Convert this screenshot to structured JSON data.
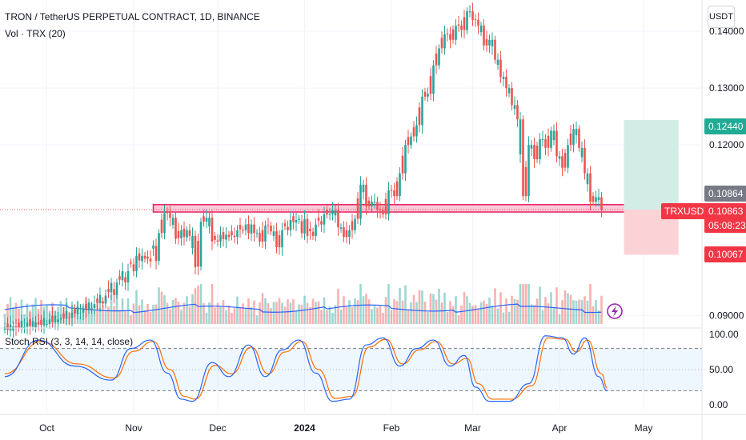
{
  "header": {
    "title": "TRON / TetherUS PERPETUAL CONTRACT, 1D, BINANCE",
    "volume_label": "Vol · TRX (20)",
    "currency_button": "USDT"
  },
  "rsi_label": "Stoch RSI (3, 3, 14, 14, close)",
  "price_tags": {
    "take_profit": "0.12440",
    "last_close": "0.10864",
    "symbol": "TRXUSDT.P",
    "current": "0.10863",
    "countdown": "05:08:23",
    "stop": "0.10067"
  },
  "colors": {
    "up": "#26a69a",
    "down": "#ef5350",
    "vol_ma": "#2962ff",
    "rsi_k": "#2962ff",
    "rsi_d": "#ff6d00",
    "zone_fill": "#f8bbd0",
    "zone_border": "#e91e63",
    "target_fill": "#d1ede6",
    "stop_fill": "#fbd3d7",
    "tag_green": "#22ab94",
    "tag_gray": "#787b86",
    "tag_red": "#f23645"
  },
  "icons": {
    "alert": "lightning-icon"
  },
  "chart_data": {
    "type": "candlestick",
    "price_axis": {
      "ticks": [
        "0.14000",
        "0.13000",
        "0.12000",
        "0.09000"
      ],
      "tick_values": [
        0.14,
        0.13,
        0.12,
        0.09
      ],
      "ylim": [
        0.0885,
        0.1455
      ]
    },
    "x_ticks": [
      "Oct",
      "Nov",
      "Dec",
      "2024",
      "Feb",
      "Mar",
      "Apr",
      "May"
    ],
    "x_tick_days": [
      15,
      46,
      76,
      107,
      138,
      167,
      198,
      228
    ],
    "support_zone": [
      0.1082,
      0.1095
    ],
    "target": 0.1244,
    "stop": 0.10067,
    "candles": [
      {
        "d": 0,
        "o": 0.0875,
        "c": 0.088
      },
      {
        "d": 4,
        "o": 0.0881,
        "c": 0.0879
      },
      {
        "d": 8,
        "o": 0.088,
        "c": 0.0888
      },
      {
        "d": 12,
        "o": 0.0888,
        "c": 0.0884
      },
      {
        "d": 16,
        "o": 0.0885,
        "c": 0.0893
      },
      {
        "d": 20,
        "o": 0.0893,
        "c": 0.0895
      },
      {
        "d": 24,
        "o": 0.0896,
        "c": 0.0905
      },
      {
        "d": 28,
        "o": 0.0905,
        "c": 0.0912
      },
      {
        "d": 32,
        "o": 0.0913,
        "c": 0.092
      },
      {
        "d": 36,
        "o": 0.0921,
        "c": 0.0935
      },
      {
        "d": 40,
        "o": 0.0936,
        "c": 0.0958
      },
      {
        "d": 44,
        "o": 0.0958,
        "c": 0.0978
      },
      {
        "d": 47,
        "o": 0.0978,
        "c": 0.1005
      },
      {
        "d": 50,
        "o": 0.1005,
        "c": 0.1
      },
      {
        "d": 52,
        "o": 0.1,
        "c": 0.0995
      },
      {
        "d": 55,
        "o": 0.0996,
        "c": 0.1045
      },
      {
        "d": 57,
        "o": 0.1045,
        "c": 0.108
      },
      {
        "d": 59,
        "o": 0.108,
        "c": 0.1072
      },
      {
        "d": 61,
        "o": 0.1072,
        "c": 0.1035
      },
      {
        "d": 63,
        "o": 0.1036,
        "c": 0.105
      },
      {
        "d": 66,
        "o": 0.105,
        "c": 0.104
      },
      {
        "d": 68,
        "o": 0.104,
        "c": 0.0985
      },
      {
        "d": 70,
        "o": 0.0986,
        "c": 0.1065
      },
      {
        "d": 72,
        "o": 0.1065,
        "c": 0.1072
      },
      {
        "d": 74,
        "o": 0.1072,
        "c": 0.103
      },
      {
        "d": 77,
        "o": 0.103,
        "c": 0.1042
      },
      {
        "d": 80,
        "o": 0.1042,
        "c": 0.1038
      },
      {
        "d": 83,
        "o": 0.1038,
        "c": 0.105
      },
      {
        "d": 86,
        "o": 0.105,
        "c": 0.106
      },
      {
        "d": 89,
        "o": 0.106,
        "c": 0.1045
      },
      {
        "d": 91,
        "o": 0.1045,
        "c": 0.103
      },
      {
        "d": 93,
        "o": 0.103,
        "c": 0.1058
      },
      {
        "d": 95,
        "o": 0.1058,
        "c": 0.1048
      },
      {
        "d": 97,
        "o": 0.1048,
        "c": 0.102
      },
      {
        "d": 99,
        "o": 0.102,
        "c": 0.105
      },
      {
        "d": 102,
        "o": 0.105,
        "c": 0.1068
      },
      {
        "d": 105,
        "o": 0.1068,
        "c": 0.107
      },
      {
        "d": 108,
        "o": 0.107,
        "c": 0.104
      },
      {
        "d": 111,
        "o": 0.104,
        "c": 0.106
      },
      {
        "d": 114,
        "o": 0.106,
        "c": 0.1078
      },
      {
        "d": 117,
        "o": 0.1078,
        "c": 0.1085
      },
      {
        "d": 119,
        "o": 0.1085,
        "c": 0.1055
      },
      {
        "d": 121,
        "o": 0.1055,
        "c": 0.1038
      },
      {
        "d": 123,
        "o": 0.1038,
        "c": 0.105
      },
      {
        "d": 125,
        "o": 0.105,
        "c": 0.107
      },
      {
        "d": 127,
        "o": 0.107,
        "c": 0.113
      },
      {
        "d": 129,
        "o": 0.113,
        "c": 0.1092
      },
      {
        "d": 131,
        "o": 0.1092,
        "c": 0.11
      },
      {
        "d": 133,
        "o": 0.11,
        "c": 0.1085
      },
      {
        "d": 135,
        "o": 0.1085,
        "c": 0.1078
      },
      {
        "d": 137,
        "o": 0.1078,
        "c": 0.112
      },
      {
        "d": 139,
        "o": 0.112,
        "c": 0.111
      },
      {
        "d": 141,
        "o": 0.111,
        "c": 0.115
      },
      {
        "d": 143,
        "o": 0.115,
        "c": 0.12
      },
      {
        "d": 145,
        "o": 0.12,
        "c": 0.1215
      },
      {
        "d": 147,
        "o": 0.1215,
        "c": 0.1235
      },
      {
        "d": 149,
        "o": 0.1235,
        "c": 0.1285
      },
      {
        "d": 151,
        "o": 0.1285,
        "c": 0.129
      },
      {
        "d": 153,
        "o": 0.129,
        "c": 0.134
      },
      {
        "d": 155,
        "o": 0.134,
        "c": 0.137
      },
      {
        "d": 157,
        "o": 0.137,
        "c": 0.1395
      },
      {
        "d": 159,
        "o": 0.1395,
        "c": 0.1385
      },
      {
        "d": 161,
        "o": 0.1385,
        "c": 0.141
      },
      {
        "d": 163,
        "o": 0.141,
        "c": 0.1402
      },
      {
        "d": 165,
        "o": 0.1402,
        "c": 0.1435
      },
      {
        "d": 167,
        "o": 0.1435,
        "c": 0.142
      },
      {
        "d": 169,
        "o": 0.142,
        "c": 0.141
      },
      {
        "d": 171,
        "o": 0.141,
        "c": 0.1375
      },
      {
        "d": 173,
        "o": 0.1375,
        "c": 0.1385
      },
      {
        "d": 175,
        "o": 0.1385,
        "c": 0.135
      },
      {
        "d": 177,
        "o": 0.135,
        "c": 0.132
      },
      {
        "d": 179,
        "o": 0.132,
        "c": 0.13
      },
      {
        "d": 181,
        "o": 0.13,
        "c": 0.127
      },
      {
        "d": 183,
        "o": 0.127,
        "c": 0.1245
      },
      {
        "d": 185,
        "o": 0.1245,
        "c": 0.111
      },
      {
        "d": 187,
        "o": 0.111,
        "c": 0.12
      },
      {
        "d": 189,
        "o": 0.12,
        "c": 0.1175
      },
      {
        "d": 191,
        "o": 0.1175,
        "c": 0.121
      },
      {
        "d": 193,
        "o": 0.121,
        "c": 0.1195
      },
      {
        "d": 195,
        "o": 0.1195,
        "c": 0.1225
      },
      {
        "d": 197,
        "o": 0.1225,
        "c": 0.118
      },
      {
        "d": 199,
        "o": 0.118,
        "c": 0.116
      },
      {
        "d": 201,
        "o": 0.116,
        "c": 0.12
      },
      {
        "d": 203,
        "o": 0.12,
        "c": 0.1228
      },
      {
        "d": 205,
        "o": 0.1228,
        "c": 0.1195
      },
      {
        "d": 207,
        "o": 0.1195,
        "c": 0.115
      },
      {
        "d": 209,
        "o": 0.115,
        "c": 0.11
      },
      {
        "d": 211,
        "o": 0.11,
        "c": 0.1108
      },
      {
        "d": 213,
        "o": 0.1108,
        "c": 0.1086
      }
    ],
    "stoch_rsi": {
      "ticks": [
        "100.00",
        "50.00",
        "0.00"
      ],
      "tick_values": [
        100,
        50,
        0
      ],
      "bands": [
        80,
        20
      ],
      "k_points": [
        [
          0,
          40
        ],
        [
          12,
          92
        ],
        [
          25,
          55
        ],
        [
          38,
          35
        ],
        [
          45,
          80
        ],
        [
          52,
          92
        ],
        [
          58,
          45
        ],
        [
          63,
          8
        ],
        [
          67,
          5
        ],
        [
          74,
          60
        ],
        [
          80,
          40
        ],
        [
          87,
          85
        ],
        [
          93,
          40
        ],
        [
          99,
          78
        ],
        [
          105,
          92
        ],
        [
          111,
          45
        ],
        [
          117,
          5
        ],
        [
          123,
          8
        ],
        [
          129,
          85
        ],
        [
          135,
          95
        ],
        [
          141,
          55
        ],
        [
          147,
          80
        ],
        [
          153,
          92
        ],
        [
          159,
          55
        ],
        [
          164,
          70
        ],
        [
          168,
          25
        ],
        [
          173,
          5
        ],
        [
          180,
          5
        ],
        [
          187,
          30
        ],
        [
          193,
          98
        ],
        [
          199,
          95
        ],
        [
          203,
          72
        ],
        [
          207,
          95
        ],
        [
          212,
          40
        ],
        [
          215,
          20
        ]
      ],
      "d_points": [
        [
          0,
          44
        ],
        [
          13,
          90
        ],
        [
          26,
          58
        ],
        [
          39,
          38
        ],
        [
          46,
          76
        ],
        [
          53,
          90
        ],
        [
          59,
          50
        ],
        [
          64,
          12
        ],
        [
          68,
          8
        ],
        [
          75,
          56
        ],
        [
          81,
          44
        ],
        [
          88,
          82
        ],
        [
          94,
          44
        ],
        [
          100,
          75
        ],
        [
          106,
          90
        ],
        [
          112,
          50
        ],
        [
          118,
          9
        ],
        [
          124,
          12
        ],
        [
          130,
          82
        ],
        [
          136,
          93
        ],
        [
          142,
          58
        ],
        [
          148,
          78
        ],
        [
          154,
          90
        ],
        [
          160,
          58
        ],
        [
          165,
          66
        ],
        [
          169,
          30
        ],
        [
          174,
          8
        ],
        [
          181,
          8
        ],
        [
          188,
          27
        ],
        [
          194,
          95
        ],
        [
          200,
          93
        ],
        [
          204,
          75
        ],
        [
          208,
          92
        ],
        [
          213,
          44
        ],
        [
          215,
          24
        ]
      ]
    }
  }
}
